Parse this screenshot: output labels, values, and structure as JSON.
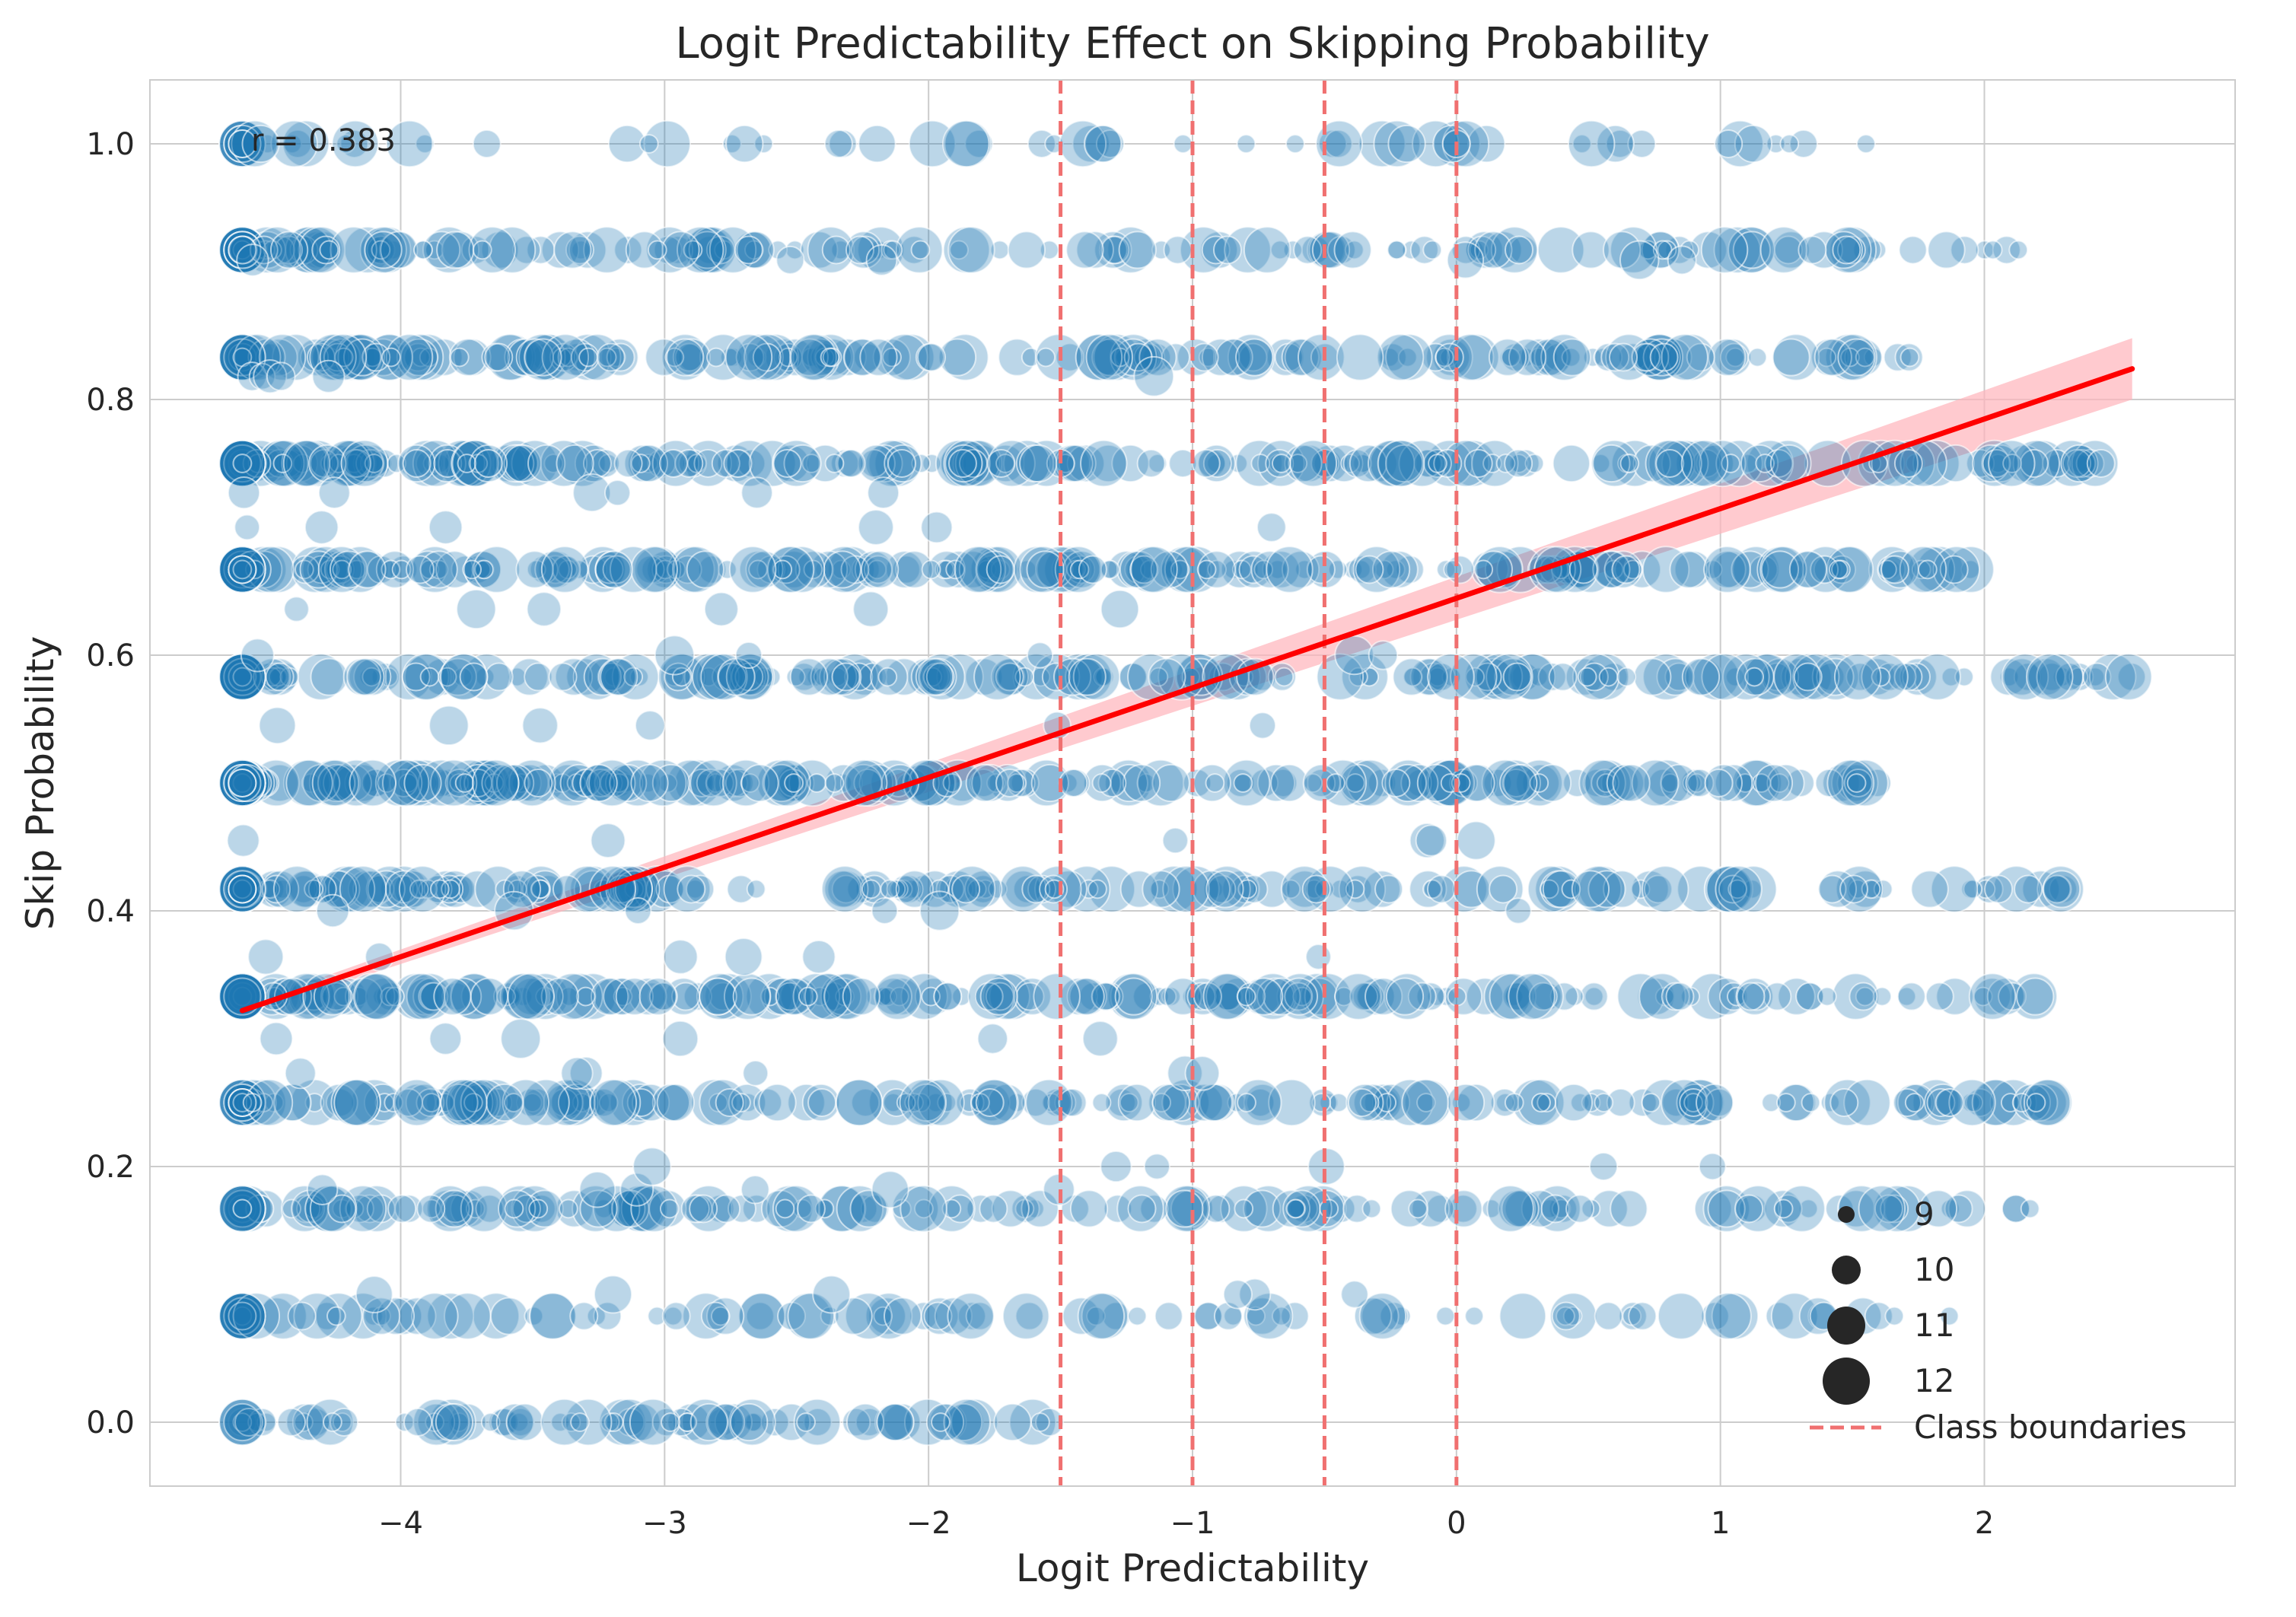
{
  "chart_data": {
    "type": "scatter",
    "title": "Logit Predictability Effect on Skipping Probability",
    "xlabel": "Logit Predictability",
    "ylabel": "Skip Probability",
    "xlim": [
      -4.95,
      2.95
    ],
    "ylim": [
      -0.05,
      1.05
    ],
    "x_ticks": [
      -4,
      -3,
      -2,
      -1,
      0,
      1,
      2
    ],
    "x_tick_labels": [
      "−4",
      "−3",
      "−2",
      "−1",
      "0",
      "1",
      "2"
    ],
    "y_ticks": [
      0.0,
      0.2,
      0.4,
      0.6,
      0.8,
      1.0
    ],
    "y_tick_labels": [
      "0.0",
      "0.2",
      "0.4",
      "0.6",
      "0.8",
      "1.0"
    ],
    "grid": true,
    "annotation": "r = 0.383",
    "colors": {
      "points": "#1f77b4",
      "regression": "#ff0000",
      "confidence_band": "#ffb3ba",
      "boundaries": "#f07070",
      "grid": "#cccccc"
    },
    "regression": {
      "x": [
        -4.6,
        2.56
      ],
      "y": [
        0.322,
        0.824
      ],
      "ci_halfwidth_ends": [
        0.004,
        0.024
      ]
    },
    "class_boundaries": [
      -1.5,
      -1.0,
      -0.5,
      0.0
    ],
    "legend": {
      "position": "lower right",
      "size_entries": [
        {
          "label": "9",
          "size": 9
        },
        {
          "label": "10",
          "size": 10
        },
        {
          "label": "11",
          "size": 11
        },
        {
          "label": "12",
          "size": 12
        }
      ],
      "line_entry": "Class boundaries"
    },
    "skip_levels": [
      0.0,
      0.083,
      0.167,
      0.25,
      0.333,
      0.417,
      0.5,
      0.583,
      0.667,
      0.75,
      0.833,
      0.917,
      1.0
    ],
    "sparse_levels": [
      0.1,
      0.182,
      0.2,
      0.273,
      0.3,
      0.364,
      0.4,
      0.455,
      0.545,
      0.6,
      0.636,
      0.7,
      0.727,
      0.818,
      0.909
    ],
    "level_density": [
      {
        "y": 0.0,
        "x_range": [
          -4.6,
          -1.5
        ],
        "n": 90
      },
      {
        "y": 0.083,
        "x_range": [
          -4.6,
          1.9
        ],
        "n": 130
      },
      {
        "y": 0.167,
        "x_range": [
          -4.6,
          2.2
        ],
        "n": 190
      },
      {
        "y": 0.25,
        "x_range": [
          -4.6,
          2.3
        ],
        "n": 230
      },
      {
        "y": 0.333,
        "x_range": [
          -4.6,
          2.2
        ],
        "n": 270
      },
      {
        "y": 0.417,
        "x_range": [
          -4.6,
          2.3
        ],
        "n": 250
      },
      {
        "y": 0.5,
        "x_range": [
          -4.6,
          1.6
        ],
        "n": 300
      },
      {
        "y": 0.583,
        "x_range": [
          -4.6,
          2.56
        ],
        "n": 280
      },
      {
        "y": 0.667,
        "x_range": [
          -4.6,
          1.95
        ],
        "n": 300
      },
      {
        "y": 0.75,
        "x_range": [
          -4.6,
          2.56
        ],
        "n": 310
      },
      {
        "y": 0.833,
        "x_range": [
          -4.6,
          1.8
        ],
        "n": 250
      },
      {
        "y": 0.917,
        "x_range": [
          -4.6,
          2.2
        ],
        "n": 200
      },
      {
        "y": 1.0,
        "x_range": [
          -4.6,
          1.6
        ],
        "n": 70
      }
    ]
  }
}
